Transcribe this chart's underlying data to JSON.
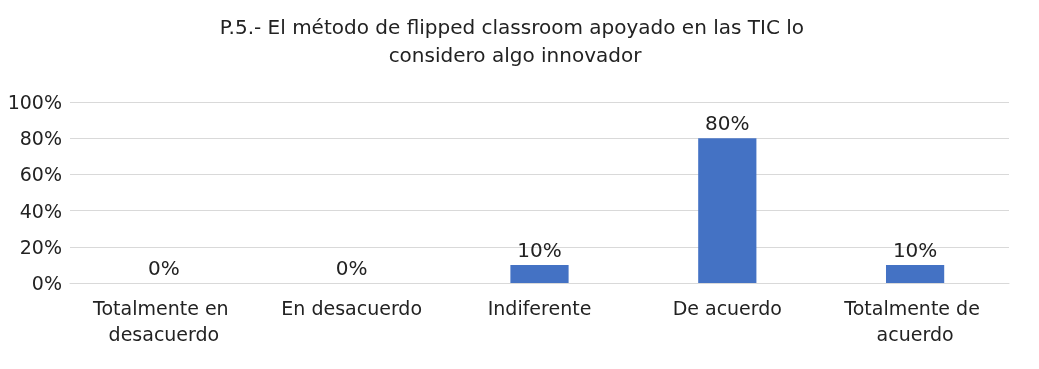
{
  "chart_data": {
    "type": "bar",
    "title": "P.5.- El método de flipped classroom apoyado en las TIC lo considero algo innovador",
    "categories": [
      "Totalmente en desacuerdo",
      "En desacuerdo",
      "Indiferente",
      "De acuerdo",
      "Totalmente de acuerdo"
    ],
    "values": [
      0,
      0,
      10,
      80,
      10
    ],
    "value_labels": [
      "0%",
      "0%",
      "10%",
      "80%",
      "10%"
    ],
    "color": "#4472c4",
    "ylim": [
      0,
      100
    ],
    "yticks": [
      {
        "value": 0,
        "label": "0%"
      },
      {
        "value": 20,
        "label": "20%"
      },
      {
        "value": 40,
        "label": "40%"
      },
      {
        "value": 60,
        "label": "60%"
      },
      {
        "value": 80,
        "label": "80%"
      },
      {
        "value": 100,
        "label": "100%"
      }
    ],
    "grid": "y"
  }
}
